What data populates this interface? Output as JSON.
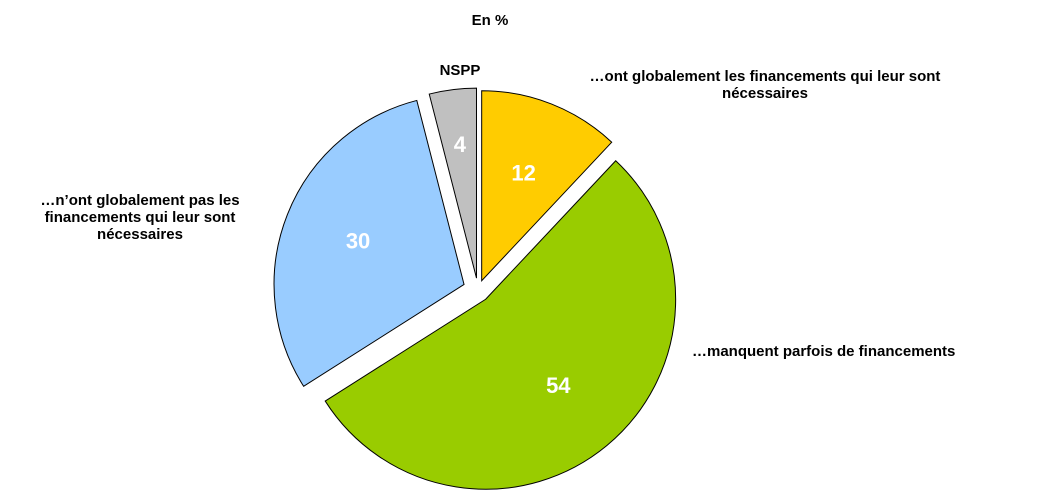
{
  "chart_data": {
    "type": "pie",
    "title": "En %",
    "categories": [
      "…ont globalement les financements qui leur sont nécessaires",
      "…manquent parfois de financements",
      "…n’ont globalement pas les financements qui leur sont nécessaires",
      "NSPP"
    ],
    "values": [
      12,
      54,
      30,
      4
    ],
    "colors": [
      "#ffcc00",
      "#99cc00",
      "#99ccff",
      "#c0c0c0"
    ]
  }
}
